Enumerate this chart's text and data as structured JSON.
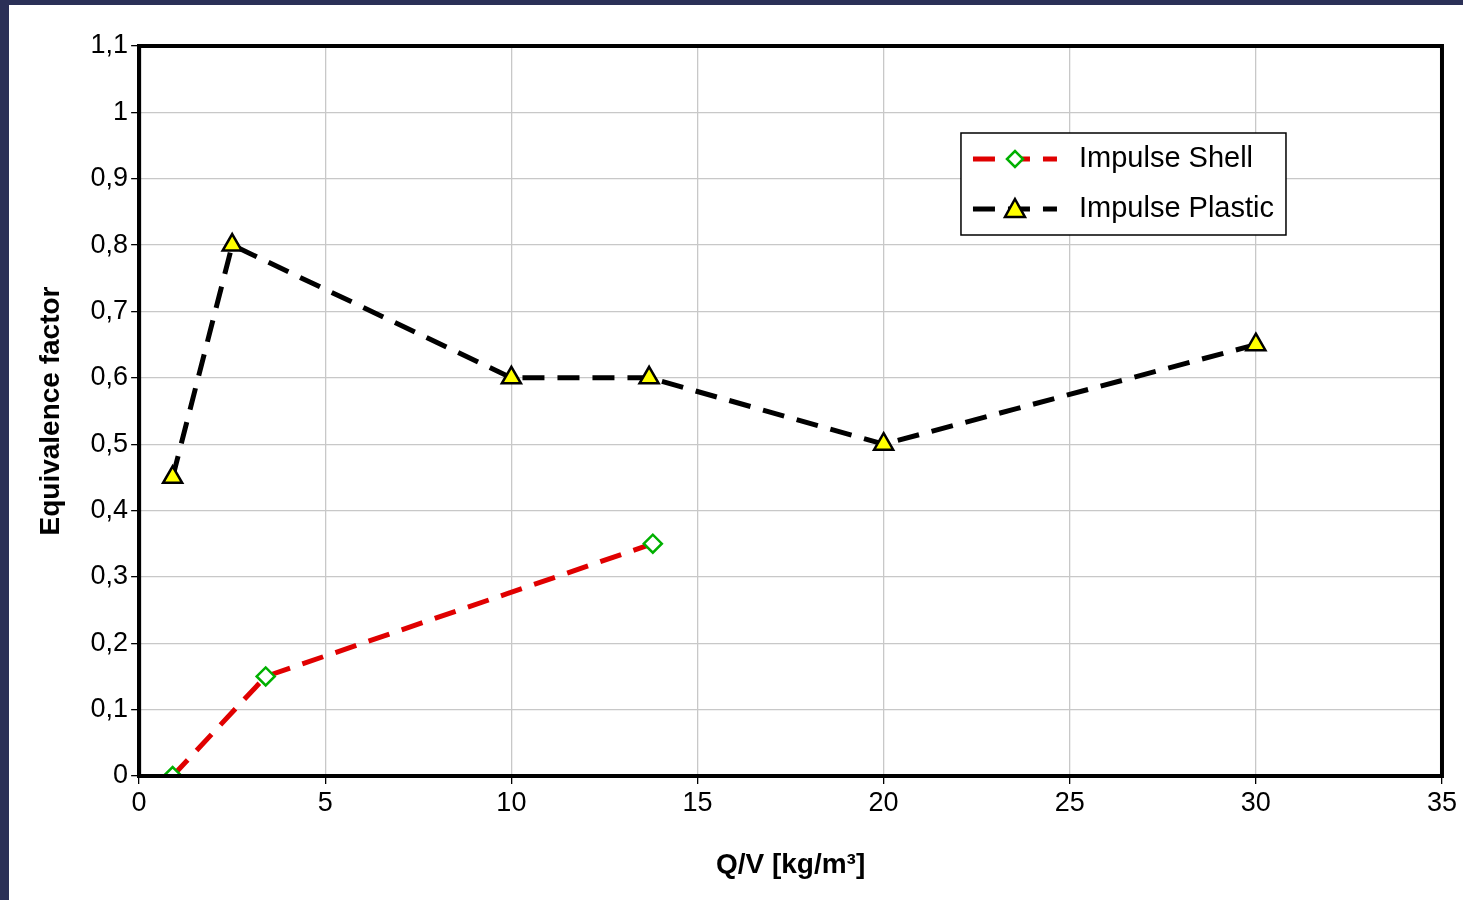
{
  "chart_data": {
    "type": "line",
    "xlabel": "Q/V [kg/m³]",
    "ylabel": "Equivalence factor",
    "xlim": [
      0,
      35
    ],
    "xticks": [
      0,
      5,
      10,
      15,
      20,
      25,
      30,
      35
    ],
    "ylim": [
      0,
      1.1
    ],
    "yticks": [
      0,
      {
        "value": 0.1,
        "label": "0,1"
      },
      {
        "value": 0.2,
        "label": "0,2"
      },
      {
        "value": 0.3,
        "label": "0,3"
      },
      {
        "value": 0.4,
        "label": "0,4"
      },
      {
        "value": 0.5,
        "label": "0,5"
      },
      {
        "value": 0.6,
        "label": "0,6"
      },
      {
        "value": 0.7,
        "label": "0,7"
      },
      {
        "value": 0.8,
        "label": "0,8"
      },
      {
        "value": 0.9,
        "label": "0,9"
      },
      1,
      {
        "value": 1.1,
        "label": "1,1"
      }
    ],
    "grid": true,
    "legend": "top right",
    "line_style": "dashed",
    "series": [
      {
        "name": "Impulse Shell",
        "color": "#e00000",
        "marker": "diamond",
        "x": [
          0.9,
          3.4,
          13.8
        ],
        "values": [
          0,
          0.15,
          0.35
        ]
      },
      {
        "name": "Impulse Plastic",
        "color": "#000000",
        "marker": "triangle",
        "x": [
          0.9,
          2.5,
          10,
          13.7,
          20,
          30
        ],
        "values": [
          0.45,
          0.8,
          0.6,
          0.6,
          0.5,
          0.65
        ]
      }
    ]
  }
}
